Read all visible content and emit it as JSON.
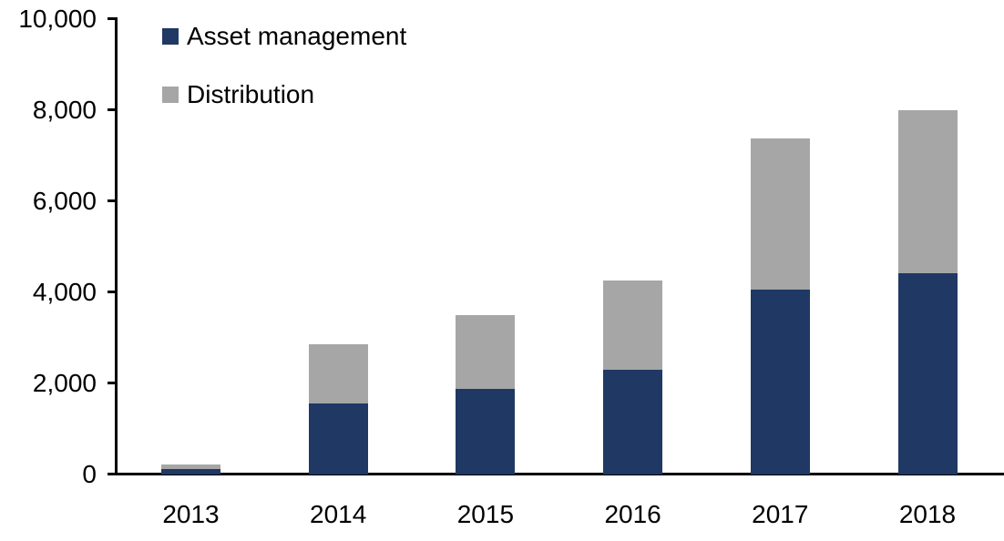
{
  "chart_data": {
    "type": "bar",
    "stacked": true,
    "title": "",
    "xlabel": "",
    "ylabel": "",
    "categories": [
      "2013",
      "2014",
      "2015",
      "2016",
      "2017",
      "2018"
    ],
    "series": [
      {
        "name": "Asset management",
        "color": "#1F3864",
        "values": [
          120,
          1550,
          1880,
          2300,
          4050,
          4420
        ]
      },
      {
        "name": "Distribution",
        "color": "#A6A6A6",
        "values": [
          100,
          1310,
          1620,
          1950,
          3330,
          3580
        ]
      }
    ],
    "ylim": [
      0,
      10000
    ],
    "yticks": [
      {
        "value": 0,
        "label": "0"
      },
      {
        "value": 2000,
        "label": "2,000"
      },
      {
        "value": 4000,
        "label": "4,000"
      },
      {
        "value": 6000,
        "label": "6,000"
      },
      {
        "value": 8000,
        "label": "8,000"
      },
      {
        "value": 10000,
        "label": "10,000"
      }
    ],
    "grid": false,
    "legend_position": "top-left",
    "axis_color": "#000000",
    "background": "#FFFFFF"
  }
}
